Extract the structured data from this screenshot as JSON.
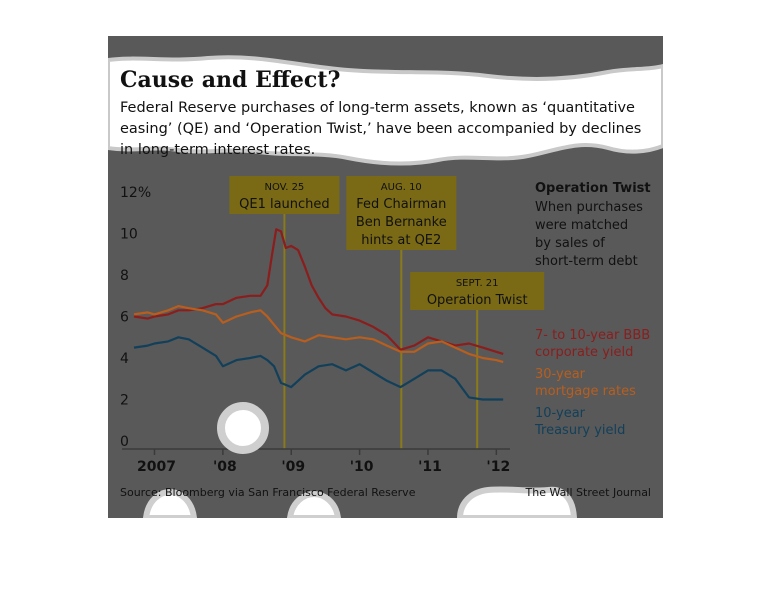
{
  "colors": {
    "background": "#595959",
    "corporate": "#8b1d1d",
    "mortgage": "#b85e1e",
    "treasury": "#12405a",
    "annotation_box": "#7a6a15",
    "annotation_line": "#8a7a1a",
    "torn_paper": "#ffffff"
  },
  "chart_data": {
    "type": "line",
    "title": "Cause and Effect?",
    "subtitle_lines": [
      "Federal Reserve purchases of long-term assets, known as ‘quantitative",
      "easing’ (QE) and ‘Operation Twist,’ have been accompanied by declines",
      "in long-term interest rates."
    ],
    "y_tick_labels": [
      "12%",
      "10",
      "8",
      "6",
      "4",
      "2",
      "0"
    ],
    "y_ticks": [
      12,
      10,
      8,
      6,
      4,
      2,
      0
    ],
    "ylim": [
      0,
      12
    ],
    "x_tick_labels": [
      "2007",
      "'08",
      "'09",
      "'10",
      "'11",
      "'12"
    ],
    "x_ticks": [
      2007.0,
      2008.0,
      2009.0,
      2010.0,
      2011.0,
      2012.0
    ],
    "xlim": [
      2006.7,
      2012.2
    ],
    "grid": false,
    "series": [
      {
        "name": "7- to 10-year BBB corporate yield",
        "color_key": "corporate",
        "x": [
          2006.7,
          2006.9,
          2007.0,
          2007.2,
          2007.35,
          2007.5,
          2007.7,
          2007.9,
          2008.0,
          2008.2,
          2008.4,
          2008.55,
          2008.65,
          2008.72,
          2008.78,
          2008.85,
          2008.92,
          2009.0,
          2009.1,
          2009.2,
          2009.3,
          2009.4,
          2009.5,
          2009.6,
          2009.8,
          2010.0,
          2010.2,
          2010.4,
          2010.6,
          2010.8,
          2011.0,
          2011.2,
          2011.4,
          2011.6,
          2011.8,
          2012.0,
          2012.1
        ],
        "y": [
          6.0,
          5.9,
          6.0,
          6.1,
          6.3,
          6.3,
          6.4,
          6.6,
          6.6,
          6.9,
          7.0,
          7.0,
          7.5,
          9.0,
          10.2,
          10.1,
          9.3,
          9.4,
          9.2,
          8.4,
          7.5,
          6.9,
          6.4,
          6.1,
          6.0,
          5.8,
          5.5,
          5.1,
          4.4,
          4.6,
          5.0,
          4.8,
          4.6,
          4.7,
          4.5,
          4.3,
          4.2
        ]
      },
      {
        "name": "30-year mortgage rates",
        "color_key": "mortgage",
        "x": [
          2006.7,
          2006.9,
          2007.0,
          2007.2,
          2007.35,
          2007.5,
          2007.7,
          2007.9,
          2008.0,
          2008.2,
          2008.4,
          2008.55,
          2008.65,
          2008.75,
          2008.85,
          2009.0,
          2009.2,
          2009.4,
          2009.6,
          2009.8,
          2010.0,
          2010.2,
          2010.4,
          2010.6,
          2010.8,
          2011.0,
          2011.2,
          2011.4,
          2011.6,
          2011.8,
          2012.0,
          2012.1
        ],
        "y": [
          6.1,
          6.2,
          6.1,
          6.3,
          6.5,
          6.4,
          6.3,
          6.1,
          5.7,
          6.0,
          6.2,
          6.3,
          6.0,
          5.6,
          5.2,
          5.0,
          4.8,
          5.1,
          5.0,
          4.9,
          5.0,
          4.9,
          4.6,
          4.3,
          4.3,
          4.7,
          4.8,
          4.5,
          4.2,
          4.0,
          3.9,
          3.8
        ]
      },
      {
        "name": "10-year Treasury yield",
        "color_key": "treasury",
        "x": [
          2006.7,
          2006.9,
          2007.0,
          2007.2,
          2007.35,
          2007.5,
          2007.7,
          2007.9,
          2008.0,
          2008.2,
          2008.4,
          2008.55,
          2008.65,
          2008.75,
          2008.85,
          2009.0,
          2009.2,
          2009.4,
          2009.6,
          2009.8,
          2010.0,
          2010.2,
          2010.4,
          2010.6,
          2010.8,
          2011.0,
          2011.2,
          2011.4,
          2011.6,
          2011.8,
          2012.0,
          2012.1
        ],
        "y": [
          4.5,
          4.6,
          4.7,
          4.8,
          5.0,
          4.9,
          4.5,
          4.1,
          3.6,
          3.9,
          4.0,
          4.1,
          3.9,
          3.6,
          2.8,
          2.6,
          3.2,
          3.6,
          3.7,
          3.4,
          3.7,
          3.3,
          2.9,
          2.6,
          3.0,
          3.4,
          3.4,
          3.0,
          2.1,
          2.0,
          2.0,
          2.0
        ]
      }
    ],
    "annotations": [
      {
        "date": "NOV. 25",
        "text": [
          "QE1 launched"
        ],
        "x": 2008.9
      },
      {
        "date": "AUG. 10",
        "text": [
          "Fed Chairman",
          "Ben Bernanke",
          "hints at QE2"
        ],
        "x": 2010.61
      },
      {
        "date": "SEPT. 21",
        "text": [
          "Operation Twist"
        ],
        "x": 2011.72
      }
    ],
    "operation_twist_note": {
      "heading": "Operation Twist",
      "lines": [
        "When purchases",
        "were matched",
        "by sales of",
        "short-term debt"
      ]
    },
    "legend_labels": [
      {
        "lines": [
          "7- to 10-year BBB",
          "corporate yield"
        ],
        "color_key": "corporate"
      },
      {
        "lines": [
          "30-year",
          "mortgage rates"
        ],
        "color_key": "mortgage"
      },
      {
        "lines": [
          "10-year",
          "Treasury yield"
        ],
        "color_key": "treasury"
      }
    ],
    "legend_placement": "right"
  },
  "footer": {
    "source": "Source: Bloomberg via San Francisco Federal Reserve",
    "credit": "The Wall Street Journal"
  }
}
